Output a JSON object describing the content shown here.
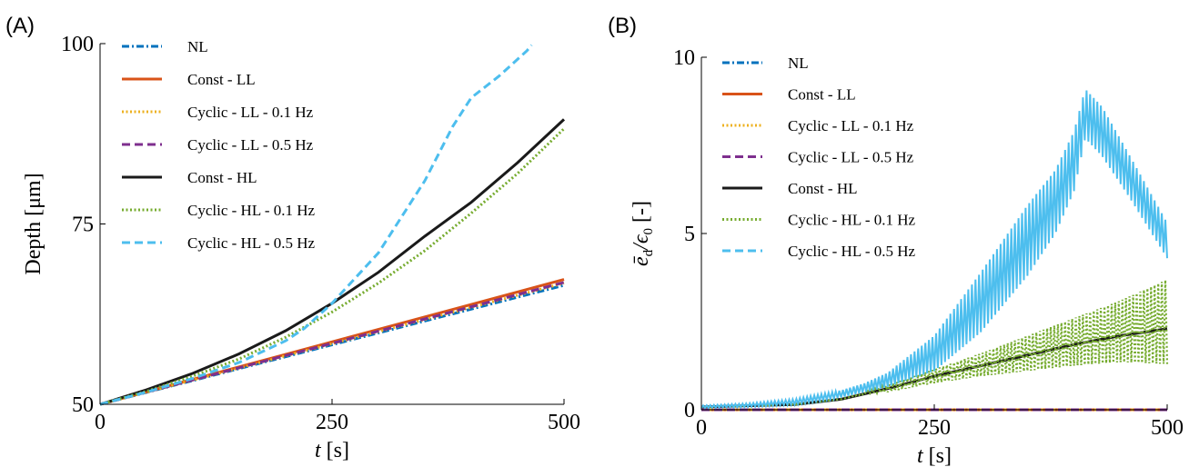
{
  "chart_data": [
    {
      "panel_label": "(A)",
      "type": "line",
      "xlabel_var": "t",
      "xlabel_unit": "[s]",
      "ylabel": "Depth [μm]",
      "xlim": [
        0,
        500
      ],
      "ylim": [
        50,
        100
      ],
      "xticks": [
        "0",
        "250",
        "500"
      ],
      "yticks": [
        "50",
        "75",
        "100"
      ],
      "legend_position": "top-left",
      "series": [
        {
          "name": "NL",
          "color": "#0072BD",
          "dash": "dashdot",
          "x": [
            0,
            500
          ],
          "y": [
            50,
            66.5
          ]
        },
        {
          "name": "Const - LL",
          "color": "#D95319",
          "dash": "solid",
          "x": [
            0,
            500
          ],
          "y": [
            50,
            67.3
          ]
        },
        {
          "name": "Cyclic - LL - 0.1 Hz",
          "color": "#EDB120",
          "dash": "dotted",
          "x": [
            0,
            500
          ],
          "y": [
            50,
            66.8
          ]
        },
        {
          "name": "Cyclic - LL - 0.5 Hz",
          "color": "#7E2F8E",
          "dash": "dashed",
          "x": [
            0,
            500
          ],
          "y": [
            50,
            66.9
          ]
        },
        {
          "name": "Const - HL",
          "color": "#1a1a1a",
          "dash": "solid",
          "x": [
            0,
            50,
            100,
            150,
            200,
            250,
            300,
            350,
            400,
            450,
            500
          ],
          "y": [
            50,
            52.0,
            54.3,
            57.0,
            60.2,
            64.0,
            68.3,
            73.3,
            78.0,
            83.5,
            89.5
          ]
        },
        {
          "name": "Cyclic - HL - 0.1 Hz",
          "color": "#77AC30",
          "dash": "dotted",
          "x": [
            0,
            50,
            100,
            150,
            200,
            250,
            300,
            350,
            400,
            450,
            500
          ],
          "y": [
            50,
            51.8,
            53.9,
            56.3,
            59.3,
            62.8,
            66.8,
            71.3,
            76.5,
            82.0,
            88.2
          ]
        },
        {
          "name": "Cyclic - HL - 0.5 Hz",
          "color": "#4DBEEE",
          "dash": "dashed",
          "x": [
            0,
            50,
            100,
            150,
            200,
            220,
            250,
            300,
            350,
            380,
            400,
            430,
            460,
            465
          ],
          "y": [
            50,
            51.7,
            53.6,
            55.8,
            58.8,
            60.5,
            64.0,
            71.0,
            81.0,
            88.5,
            92.5,
            95.5,
            99.0,
            99.8
          ]
        }
      ]
    },
    {
      "panel_label": "(B)",
      "type": "line",
      "xlabel_var": "t",
      "xlabel_unit": "[s]",
      "ylabel_main": "ē",
      "ylabel_sub": "d",
      "ylabel_mid": "/ϵ",
      "ylabel_sub2": "0",
      "ylabel_unit": " [-]",
      "xlim": [
        0,
        500
      ],
      "ylim": [
        0,
        10
      ],
      "xticks": [
        "0",
        "250",
        "500"
      ],
      "yticks": [
        "0",
        "5",
        "10"
      ],
      "legend_position": "top-left",
      "series": [
        {
          "name": "NL",
          "color": "#0072BD",
          "dash": "dashdot",
          "band": false,
          "x": [
            0,
            500
          ],
          "y": [
            0,
            0
          ]
        },
        {
          "name": "Const - LL",
          "color": "#D95319",
          "dash": "solid",
          "band": false,
          "x": [
            0,
            500
          ],
          "y": [
            0,
            0
          ]
        },
        {
          "name": "Cyclic - LL - 0.1 Hz",
          "color": "#EDB120",
          "dash": "dotted",
          "band": false,
          "x": [
            0,
            500
          ],
          "y": [
            0,
            0
          ]
        },
        {
          "name": "Cyclic - LL - 0.5 Hz",
          "color": "#7E2F8E",
          "dash": "dashed",
          "band": false,
          "x": [
            0,
            500
          ],
          "y": [
            0,
            0
          ]
        },
        {
          "name": "Const - HL",
          "color": "#1a1a1a",
          "dash": "solid",
          "band": false,
          "x": [
            0,
            100,
            150,
            175,
            200,
            250,
            300,
            350,
            400,
            450,
            500
          ],
          "y": [
            0.08,
            0.15,
            0.3,
            0.45,
            0.6,
            0.95,
            1.25,
            1.55,
            1.85,
            2.1,
            2.3
          ]
        },
        {
          "name": "Cyclic - HL - 0.1 Hz",
          "color": "#77AC30",
          "dash": "dotted",
          "band": true,
          "x": [
            0,
            100,
            150,
            175,
            200,
            250,
            300,
            350,
            400,
            450,
            500
          ],
          "y_low": [
            0.08,
            0.15,
            0.3,
            0.45,
            0.5,
            0.75,
            0.95,
            1.1,
            1.25,
            1.35,
            1.3
          ],
          "y_high": [
            0.08,
            0.15,
            0.3,
            0.5,
            0.7,
            1.15,
            1.6,
            2.1,
            2.6,
            3.1,
            3.7
          ]
        },
        {
          "name": "Cyclic - HL - 0.5 Hz",
          "color": "#4DBEEE",
          "dash": "dashed",
          "band": true,
          "x": [
            0,
            50,
            100,
            150,
            175,
            200,
            250,
            300,
            350,
            380,
            400,
            412,
            430,
            460,
            500
          ],
          "y_low": [
            0.05,
            0.08,
            0.15,
            0.35,
            0.5,
            0.65,
            1.1,
            2.2,
            3.8,
            5.0,
            6.2,
            7.7,
            7.2,
            6.0,
            4.3
          ],
          "y_high": [
            0.12,
            0.18,
            0.3,
            0.55,
            0.75,
            1.05,
            2.1,
            3.9,
            5.8,
            6.8,
            7.9,
            9.1,
            8.6,
            7.2,
            5.3
          ]
        }
      ]
    }
  ]
}
